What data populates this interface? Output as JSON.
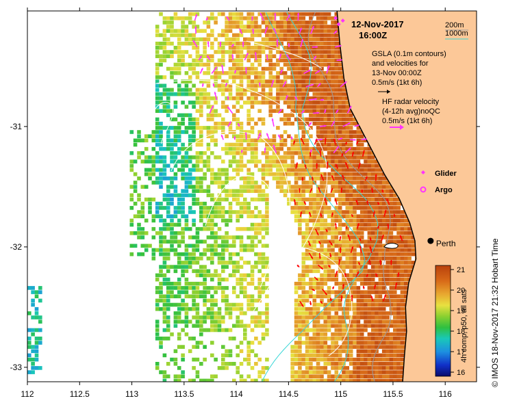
{
  "map": {
    "date": "12-Nov-2017",
    "time": "16:00Z",
    "x_ticks": [
      {
        "value": 112,
        "label": "112"
      },
      {
        "value": 112.5,
        "label": "112.5"
      },
      {
        "value": 113,
        "label": "113"
      },
      {
        "value": 113.5,
        "label": "113.5"
      },
      {
        "value": 114,
        "label": "114"
      },
      {
        "value": 114.5,
        "label": "114.5"
      },
      {
        "value": 115,
        "label": "115"
      },
      {
        "value": 115.5,
        "label": "115.5"
      },
      {
        "value": 116,
        "label": "116"
      }
    ],
    "y_ticks": [
      {
        "value": -31,
        "label": "-31"
      },
      {
        "value": -32,
        "label": "-32"
      },
      {
        "value": -33,
        "label": "-33"
      }
    ],
    "xlim": [
      112,
      116.3
    ],
    "ylim": [
      -33.12,
      -30.04
    ],
    "depth_legend": {
      "contour_1": "200m",
      "contour_2": "1000m",
      "color_1": "#9a9a9a",
      "color_2": "#37d6d6"
    },
    "gsla_legend": {
      "line1": "GSLA (0.1m contours)",
      "line2": "and velocities for",
      "line3": "13-Nov 00:00Z",
      "scale": "0.5m/s (1kt 6h)",
      "arrow_color": "#000000"
    },
    "hf_legend": {
      "line1": "HF radar velocity",
      "line2": "(4-12h avg)noQC",
      "scale": "0.5m/s (1kt 6h)",
      "arrow_color": "#ff33ff"
    },
    "glider_label": "Glider",
    "argo_label": "Argo",
    "marker_color": "#ff33ff",
    "city": {
      "name": "Perth",
      "lon": 115.86,
      "lat": -31.95
    },
    "colorbar": {
      "ticks": [
        {
          "value": 16,
          "label": "16"
        },
        {
          "value": 17,
          "label": "17"
        },
        {
          "value": 18,
          "label": "18"
        },
        {
          "value": 19,
          "label": "19"
        },
        {
          "value": 20,
          "label": "20"
        },
        {
          "value": 21,
          "label": "21"
        }
      ],
      "range": [
        15.8,
        21.2
      ],
      "label": "4h comp, p50, all sats"
    },
    "credit": "© IMOS 18-Nov-2017 21:32 Hobart Time",
    "colors": {
      "land": "#fcc898",
      "ocean": "#ffffff",
      "coast": "#000000",
      "gsla_contour": "#ffffff",
      "hf_arrow": "#ff33ff",
      "current_arrow": "#ff0000"
    }
  }
}
